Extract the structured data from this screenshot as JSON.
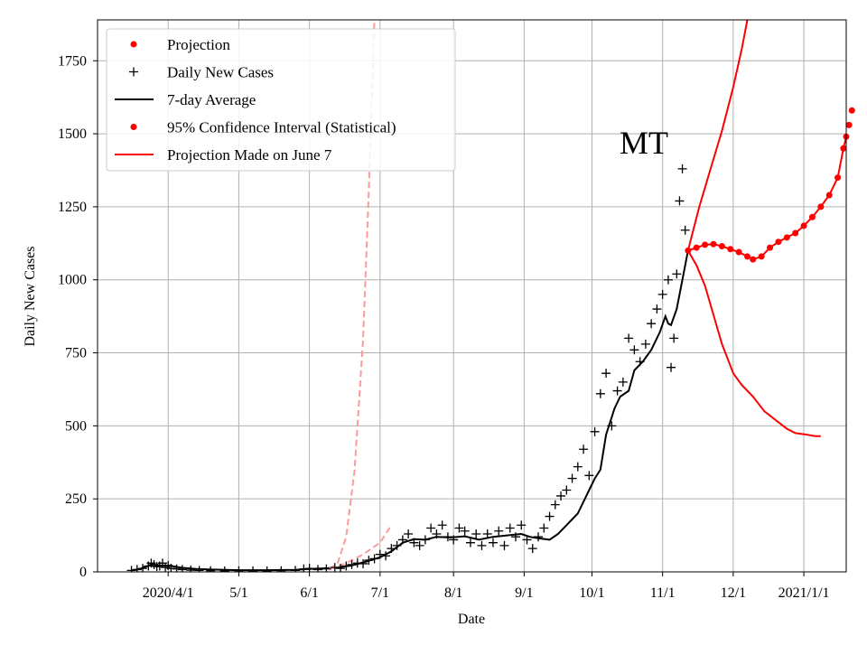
{
  "chart_data": {
    "type": "line",
    "annotation": "MT",
    "xlabel": "Date",
    "ylabel": "Daily New Cases",
    "xlim": [
      0,
      265
    ],
    "ylim": [
      0,
      1890
    ],
    "grid": true,
    "legend_position": "top-left",
    "x_ticks": [
      {
        "x": 25,
        "label": "2020/4/1"
      },
      {
        "x": 50,
        "label": "5/1"
      },
      {
        "x": 75,
        "label": "6/1"
      },
      {
        "x": 100,
        "label": "7/1"
      },
      {
        "x": 126,
        "label": "8/1"
      },
      {
        "x": 151,
        "label": "9/1"
      },
      {
        "x": 175,
        "label": "10/1"
      },
      {
        "x": 200,
        "label": "11/1"
      },
      {
        "x": 225,
        "label": "12/1"
      },
      {
        "x": 250,
        "label": "2021/1/1"
      }
    ],
    "y_ticks": [
      0,
      250,
      500,
      750,
      1000,
      1250,
      1500,
      1750
    ],
    "legend": [
      {
        "label": "Projection",
        "kind": "dot",
        "color": "#ff0000"
      },
      {
        "label": "Daily New Cases",
        "kind": "plus",
        "color": "#000000"
      },
      {
        "label": "7-day Average",
        "kind": "line",
        "color": "#000000"
      },
      {
        "label": "95% Confidence Interval (Statistical)",
        "kind": "dot",
        "color": "#ff0000"
      },
      {
        "label": "Projection Made on June 7",
        "kind": "line",
        "color": "#ff0000"
      }
    ],
    "series": [
      {
        "name": "7-day Average",
        "color": "#000000",
        "points": [
          [
            12,
            5
          ],
          [
            15,
            10
          ],
          [
            19,
            25
          ],
          [
            22,
            22
          ],
          [
            26,
            20
          ],
          [
            30,
            14
          ],
          [
            35,
            10
          ],
          [
            40,
            8
          ],
          [
            50,
            6
          ],
          [
            60,
            6
          ],
          [
            70,
            7
          ],
          [
            75,
            10
          ],
          [
            80,
            12
          ],
          [
            85,
            15
          ],
          [
            90,
            22
          ],
          [
            95,
            35
          ],
          [
            100,
            50
          ],
          [
            104,
            70
          ],
          [
            108,
            100
          ],
          [
            112,
            112
          ],
          [
            116,
            110
          ],
          [
            120,
            120
          ],
          [
            125,
            118
          ],
          [
            130,
            122
          ],
          [
            135,
            110
          ],
          [
            140,
            120
          ],
          [
            145,
            125
          ],
          [
            150,
            130
          ],
          [
            153,
            120
          ],
          [
            156,
            115
          ],
          [
            160,
            110
          ],
          [
            163,
            130
          ],
          [
            166,
            160
          ],
          [
            170,
            200
          ],
          [
            173,
            260
          ],
          [
            176,
            320
          ],
          [
            178,
            350
          ],
          [
            180,
            470
          ],
          [
            183,
            560
          ],
          [
            185,
            600
          ],
          [
            188,
            620
          ],
          [
            190,
            690
          ],
          [
            193,
            720
          ],
          [
            196,
            760
          ],
          [
            199,
            820
          ],
          [
            201,
            875
          ],
          [
            202,
            850
          ],
          [
            203,
            845
          ],
          [
            205,
            900
          ],
          [
            207,
            1000
          ],
          [
            209,
            1100
          ]
        ]
      },
      {
        "name": "Projection",
        "color": "#ff0000",
        "points": [
          [
            209,
            1100
          ],
          [
            212,
            1110
          ],
          [
            215,
            1120
          ],
          [
            218,
            1122
          ],
          [
            221,
            1115
          ],
          [
            224,
            1105
          ],
          [
            227,
            1095
          ],
          [
            230,
            1080
          ],
          [
            232,
            1070
          ],
          [
            235,
            1080
          ],
          [
            238,
            1110
          ],
          [
            241,
            1130
          ],
          [
            244,
            1145
          ],
          [
            247,
            1160
          ],
          [
            250,
            1185
          ],
          [
            253,
            1215
          ],
          [
            256,
            1250
          ],
          [
            259,
            1290
          ],
          [
            262,
            1350
          ],
          [
            264,
            1450
          ],
          [
            265,
            1490
          ],
          [
            266,
            1530
          ],
          [
            267,
            1580
          ]
        ]
      },
      {
        "name": "95% Confidence Interval Upper",
        "color": "#ff0000",
        "points": [
          [
            209,
            1100
          ],
          [
            213,
            1250
          ],
          [
            217,
            1380
          ],
          [
            221,
            1510
          ],
          [
            225,
            1660
          ],
          [
            228,
            1790
          ],
          [
            230,
            1890
          ]
        ]
      },
      {
        "name": "95% Confidence Interval Lower",
        "color": "#ff0000",
        "points": [
          [
            209,
            1100
          ],
          [
            212,
            1050
          ],
          [
            215,
            980
          ],
          [
            218,
            880
          ],
          [
            221,
            780
          ],
          [
            225,
            680
          ],
          [
            228,
            640
          ],
          [
            232,
            600
          ],
          [
            236,
            550
          ],
          [
            240,
            520
          ],
          [
            244,
            490
          ],
          [
            247,
            475
          ],
          [
            251,
            470
          ],
          [
            254,
            465
          ],
          [
            256,
            465
          ]
        ]
      },
      {
        "name": "Projection Made on June 7",
        "color": "#ff9999",
        "dashed": true,
        "points": [
          [
            82,
            10
          ],
          [
            85,
            30
          ],
          [
            88,
            120
          ],
          [
            91,
            350
          ],
          [
            94,
            800
          ],
          [
            96,
            1300
          ],
          [
            98,
            1890
          ]
        ]
      },
      {
        "name": "Projection Made on June 7 (lower)",
        "color": "#ff9999",
        "dashed": true,
        "points": [
          [
            82,
            8
          ],
          [
            88,
            30
          ],
          [
            94,
            60
          ],
          [
            100,
            100
          ],
          [
            104,
            160
          ]
        ]
      }
    ],
    "daily_cases": [
      [
        12,
        5
      ],
      [
        14,
        8
      ],
      [
        16,
        12
      ],
      [
        18,
        20
      ],
      [
        19,
        30
      ],
      [
        20,
        25
      ],
      [
        21,
        18
      ],
      [
        22,
        20
      ],
      [
        23,
        30
      ],
      [
        24,
        15
      ],
      [
        25,
        22
      ],
      [
        26,
        12
      ],
      [
        28,
        10
      ],
      [
        30,
        8
      ],
      [
        33,
        6
      ],
      [
        36,
        5
      ],
      [
        40,
        4
      ],
      [
        45,
        3
      ],
      [
        50,
        4
      ],
      [
        55,
        3
      ],
      [
        60,
        3
      ],
      [
        65,
        4
      ],
      [
        70,
        5
      ],
      [
        73,
        10
      ],
      [
        75,
        12
      ],
      [
        78,
        8
      ],
      [
        81,
        10
      ],
      [
        84,
        15
      ],
      [
        86,
        12
      ],
      [
        88,
        20
      ],
      [
        90,
        25
      ],
      [
        92,
        30
      ],
      [
        94,
        28
      ],
      [
        96,
        40
      ],
      [
        98,
        45
      ],
      [
        100,
        60
      ],
      [
        102,
        55
      ],
      [
        104,
        80
      ],
      [
        106,
        90
      ],
      [
        108,
        110
      ],
      [
        110,
        130
      ],
      [
        112,
        100
      ],
      [
        114,
        90
      ],
      [
        116,
        110
      ],
      [
        118,
        150
      ],
      [
        120,
        130
      ],
      [
        122,
        160
      ],
      [
        124,
        120
      ],
      [
        126,
        110
      ],
      [
        128,
        150
      ],
      [
        130,
        140
      ],
      [
        132,
        100
      ],
      [
        134,
        130
      ],
      [
        136,
        90
      ],
      [
        138,
        130
      ],
      [
        140,
        100
      ],
      [
        142,
        140
      ],
      [
        144,
        90
      ],
      [
        146,
        150
      ],
      [
        148,
        120
      ],
      [
        150,
        160
      ],
      [
        152,
        110
      ],
      [
        154,
        80
      ],
      [
        156,
        120
      ],
      [
        158,
        150
      ],
      [
        160,
        190
      ],
      [
        162,
        230
      ],
      [
        164,
        260
      ],
      [
        166,
        280
      ],
      [
        168,
        320
      ],
      [
        170,
        360
      ],
      [
        172,
        420
      ],
      [
        174,
        330
      ],
      [
        176,
        480
      ],
      [
        178,
        610
      ],
      [
        180,
        680
      ],
      [
        182,
        500
      ],
      [
        184,
        620
      ],
      [
        186,
        650
      ],
      [
        188,
        800
      ],
      [
        190,
        760
      ],
      [
        192,
        720
      ],
      [
        194,
        780
      ],
      [
        196,
        850
      ],
      [
        198,
        900
      ],
      [
        200,
        950
      ],
      [
        202,
        1000
      ],
      [
        203,
        700
      ],
      [
        204,
        800
      ],
      [
        205,
        1020
      ],
      [
        206,
        1270
      ],
      [
        207,
        1380
      ],
      [
        208,
        1170
      ]
    ]
  }
}
